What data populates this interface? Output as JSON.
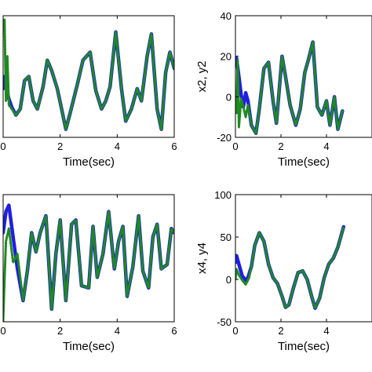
{
  "chart_data": [
    {
      "type": "line",
      "xlabel": "Time(sec)",
      "ylabel": "",
      "xlim": [
        0,
        6
      ],
      "ylim": [
        -20,
        40
      ],
      "xticks": [
        0,
        2,
        4,
        6
      ],
      "yticks": [],
      "colors": {
        "x": "#1f1fe0",
        "y": "#1f8a1f"
      },
      "series": [
        {
          "x": [
            0,
            0.05,
            0.1,
            0.15,
            0.2,
            0.3,
            0.45,
            0.6,
            0.75,
            0.9,
            1.05,
            1.2,
            1.4,
            1.55,
            1.7,
            1.9,
            2.05,
            2.2,
            2.35,
            2.6,
            2.8,
            3.05,
            3.25,
            3.45,
            3.6,
            3.75,
            3.95,
            4.15,
            4.3,
            4.5,
            4.7,
            4.85,
            5.05,
            5.2,
            5.4,
            5.55,
            5.7,
            5.85,
            6.0
          ],
          "y": [
            4,
            10,
            6,
            2,
            -1,
            -5,
            -9,
            -6,
            8,
            10,
            -2,
            -6,
            5,
            18,
            13,
            4,
            -6,
            -16,
            -8,
            6,
            18,
            22,
            3,
            -6,
            -2,
            5,
            32,
            4,
            -12,
            -6,
            4,
            -2,
            20,
            31,
            -6,
            -16,
            12,
            22,
            14
          ]
        },
        {
          "x": [
            0,
            0.05,
            0.1,
            0.15,
            0.2,
            0.3,
            0.45,
            0.6,
            0.75,
            0.9,
            1.05,
            1.2,
            1.4,
            1.55,
            1.7,
            1.9,
            2.05,
            2.2,
            2.35,
            2.6,
            2.8,
            3.05,
            3.25,
            3.45,
            3.6,
            3.75,
            3.95,
            4.15,
            4.3,
            4.5,
            4.7,
            4.85,
            5.05,
            5.2,
            5.4,
            5.55,
            5.7,
            5.85,
            6.0
          ],
          "y": [
            36,
            38,
            -2,
            20,
            -4,
            -6,
            -9,
            -6,
            8,
            10,
            -2,
            -6,
            5,
            18,
            13,
            4,
            -6,
            -16,
            -8,
            6,
            18,
            22,
            3,
            -6,
            -2,
            5,
            32,
            4,
            -12,
            -6,
            4,
            -2,
            20,
            31,
            -6,
            -16,
            12,
            22,
            14
          ]
        }
      ]
    },
    {
      "type": "line",
      "xlabel": "Time(sec)",
      "ylabel": "x2, y2",
      "xlim": [
        0,
        6
      ],
      "ylim": [
        -20,
        40
      ],
      "xticks": [
        0,
        2,
        4
      ],
      "yticks": [
        -20,
        0,
        20,
        40
      ],
      "colors": {
        "x": "#1f1fe0",
        "y": "#1f8a1f"
      },
      "series": [
        {
          "x": [
            0,
            0.05,
            0.15,
            0.25,
            0.35,
            0.45,
            0.55,
            0.7,
            0.9,
            1.05,
            1.25,
            1.45,
            1.65,
            1.8,
            2.05,
            2.2,
            2.4,
            2.65,
            2.85,
            3.05,
            3.2,
            3.4,
            3.6,
            3.8,
            4.0,
            4.15,
            4.35,
            4.5,
            4.7
          ],
          "y": [
            18,
            19,
            10,
            1,
            -5,
            2,
            -2,
            -14,
            -18,
            -6,
            14,
            17,
            -2,
            -13,
            20,
            10,
            -4,
            -14,
            -6,
            12,
            18,
            27,
            -5,
            -9,
            -2,
            -14,
            0,
            -16,
            -7
          ]
        },
        {
          "x": [
            0,
            0.05,
            0.1,
            0.15,
            0.25,
            0.35,
            0.45,
            0.55,
            0.7,
            0.9,
            1.05,
            1.25,
            1.45,
            1.65,
            1.8,
            2.05,
            2.2,
            2.4,
            2.65,
            2.85,
            3.05,
            3.2,
            3.4,
            3.6,
            3.8,
            4.0,
            4.15,
            4.35,
            4.5,
            4.7
          ],
          "y": [
            0,
            -8,
            18,
            -15,
            -1,
            -5,
            -10,
            -4,
            -14,
            -18,
            -6,
            14,
            17,
            -2,
            -13,
            20,
            10,
            -4,
            -14,
            -6,
            12,
            18,
            27,
            -5,
            -9,
            -2,
            -14,
            0,
            -16,
            -7
          ]
        }
      ]
    },
    {
      "type": "line",
      "xlabel": "Time(sec)",
      "ylabel": "",
      "xlim": [
        0,
        6
      ],
      "ylim": [
        -30,
        30
      ],
      "xticks": [
        0,
        2,
        4,
        6
      ],
      "yticks": [],
      "colors": {
        "x": "#1f1fe0",
        "y": "#1f8a1f"
      },
      "series": [
        {
          "x": [
            0,
            0.1,
            0.2,
            0.35,
            0.5,
            0.7,
            0.85,
            1.0,
            1.15,
            1.3,
            1.5,
            1.7,
            1.85,
            2.0,
            2.2,
            2.4,
            2.55,
            2.75,
            3.0,
            3.15,
            3.3,
            3.5,
            3.7,
            3.9,
            4.05,
            4.2,
            4.35,
            4.55,
            4.75,
            4.9,
            5.1,
            5.25,
            5.4,
            5.55,
            5.75,
            5.9,
            6.0
          ],
          "y": [
            12,
            22,
            25,
            10,
            -5,
            -20,
            -6,
            12,
            3,
            12,
            20,
            -24,
            2,
            18,
            -20,
            16,
            18,
            -13,
            -14,
            15,
            -9,
            2,
            22,
            -5,
            8,
            15,
            -18,
            -4,
            20,
            -6,
            -14,
            10,
            16,
            -5,
            -3,
            14,
            12
          ]
        },
        {
          "x": [
            0,
            0.05,
            0.1,
            0.2,
            0.35,
            0.5,
            0.7,
            0.85,
            1.0,
            1.15,
            1.3,
            1.5,
            1.7,
            1.85,
            2.0,
            2.2,
            2.4,
            2.55,
            2.75,
            3.0,
            3.15,
            3.3,
            3.5,
            3.7,
            3.9,
            4.05,
            4.2,
            4.35,
            4.55,
            4.75,
            4.9,
            5.1,
            5.25,
            5.4,
            5.55,
            5.75,
            5.9,
            6.0
          ],
          "y": [
            -30,
            -10,
            8,
            14,
            -2,
            2,
            -20,
            -6,
            12,
            3,
            12,
            20,
            -24,
            2,
            18,
            -20,
            16,
            18,
            -13,
            -14,
            15,
            -9,
            2,
            22,
            -5,
            8,
            15,
            -18,
            -4,
            20,
            -6,
            -14,
            10,
            16,
            -5,
            -3,
            14,
            12
          ]
        }
      ]
    },
    {
      "type": "line",
      "xlabel": "Time(sec)",
      "ylabel": "x4, y4",
      "xlim": [
        0,
        6
      ],
      "ylim": [
        -50,
        100
      ],
      "xticks": [
        0,
        2,
        4
      ],
      "yticks": [
        -50,
        0,
        50,
        100
      ],
      "colors": {
        "x": "#1f1fe0",
        "y": "#1f8a1f"
      },
      "series": [
        {
          "x": [
            0,
            0.05,
            0.15,
            0.3,
            0.5,
            0.7,
            0.85,
            1.05,
            1.25,
            1.45,
            1.65,
            1.85,
            2.05,
            2.2,
            2.35,
            2.55,
            2.75,
            2.95,
            3.15,
            3.35,
            3.5,
            3.7,
            3.9,
            4.1,
            4.3,
            4.5,
            4.75
          ],
          "y": [
            20,
            28,
            18,
            4,
            -2,
            15,
            40,
            55,
            45,
            18,
            2,
            -5,
            -20,
            -33,
            -30,
            -10,
            8,
            10,
            0,
            -20,
            -34,
            -22,
            2,
            18,
            25,
            38,
            62
          ]
        },
        {
          "x": [
            0,
            0.05,
            0.15,
            0.3,
            0.45,
            0.6,
            0.7,
            0.85,
            1.05,
            1.25,
            1.45,
            1.65,
            1.85,
            2.05,
            2.2,
            2.35,
            2.55,
            2.75,
            2.95,
            3.15,
            3.35,
            3.5,
            3.7,
            3.9,
            4.1,
            4.3,
            4.5,
            4.75
          ],
          "y": [
            0,
            12,
            5,
            -1,
            -6,
            2,
            15,
            40,
            55,
            45,
            18,
            2,
            -5,
            -20,
            -33,
            -30,
            -10,
            8,
            10,
            0,
            -20,
            -34,
            -22,
            2,
            18,
            25,
            38,
            62
          ]
        }
      ]
    }
  ]
}
